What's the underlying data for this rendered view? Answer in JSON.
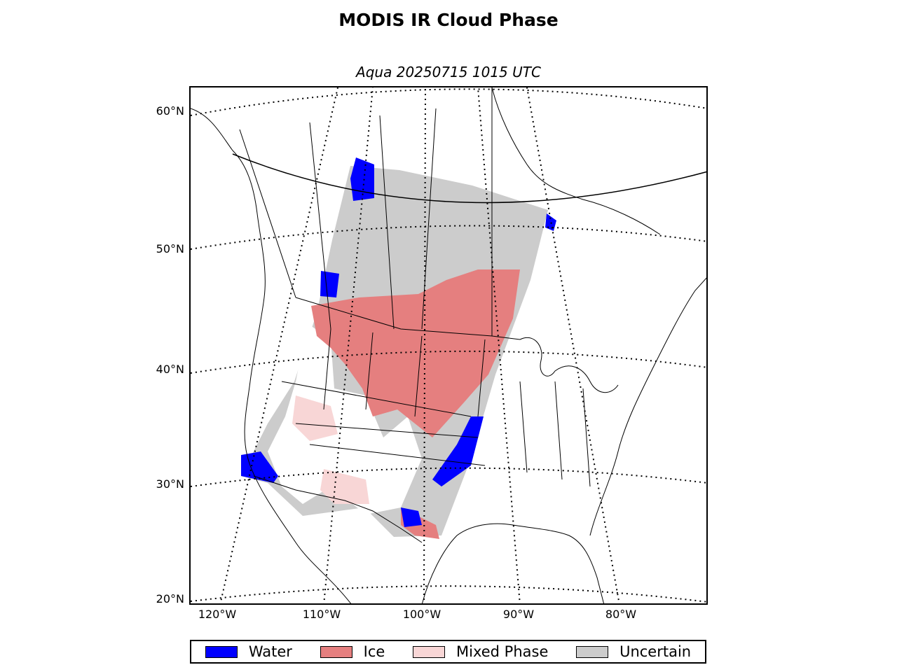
{
  "title": "MODIS IR Cloud Phase",
  "subtitle": "Aqua 20250715 1015 UTC",
  "map": {
    "projection": "lambert-conformal",
    "lat_labels": [
      "60°N",
      "50°N",
      "40°N",
      "30°N",
      "20°N"
    ],
    "lon_labels": [
      "120°W",
      "110°W",
      "100°W",
      "90°W",
      "80°W"
    ]
  },
  "legend": [
    {
      "label": "Water",
      "color": "#0000ff"
    },
    {
      "label": "Ice",
      "color": "#e57f7f"
    },
    {
      "label": "Mixed Phase",
      "color": "#f8d6d6"
    },
    {
      "label": "Uncertain",
      "color": "#cccccc"
    }
  ]
}
